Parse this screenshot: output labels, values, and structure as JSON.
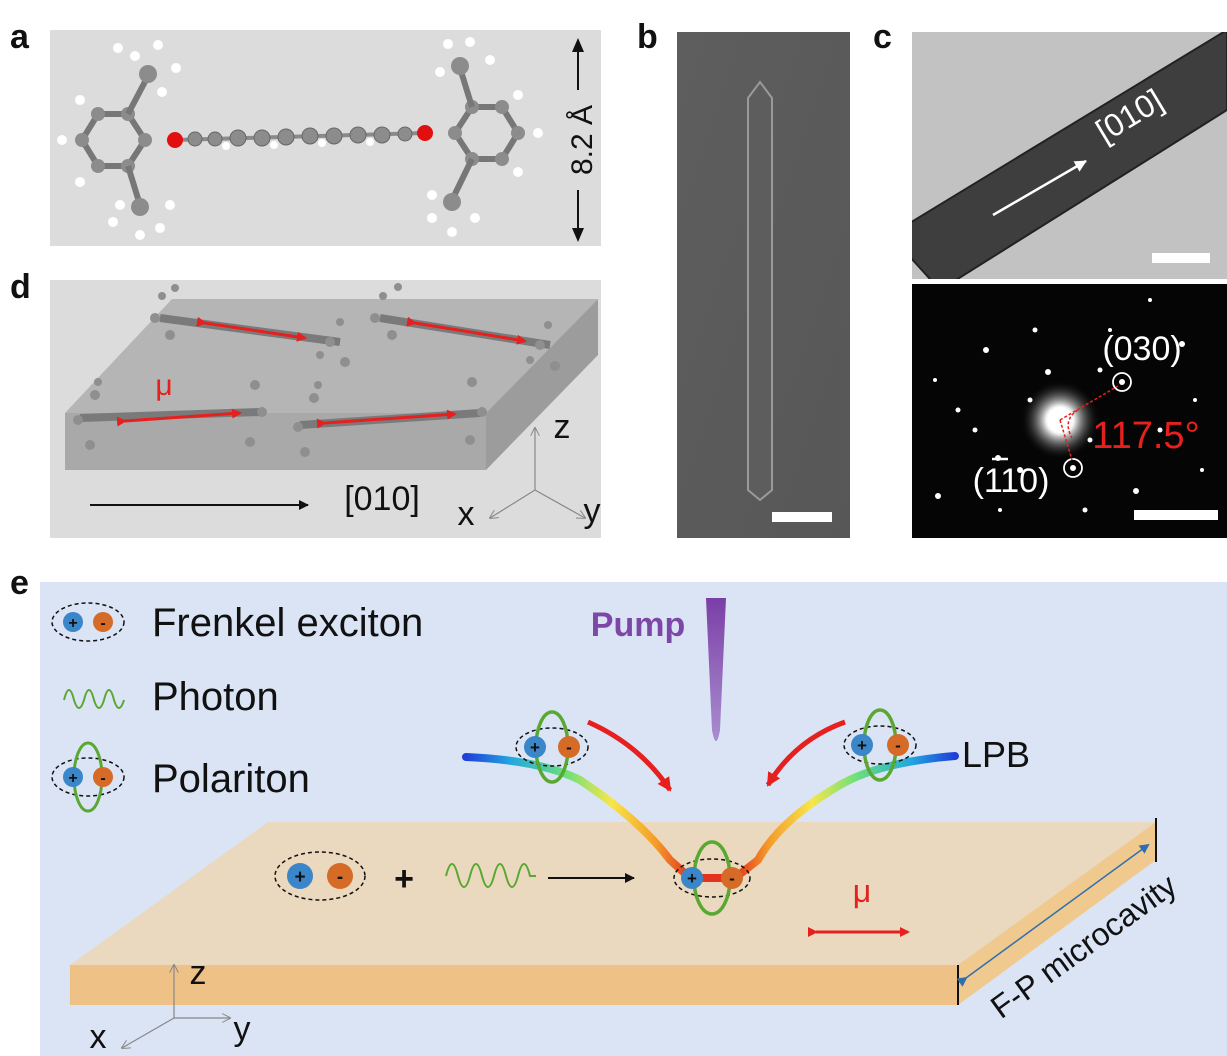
{
  "panels": {
    "a": {
      "label": "a",
      "dimension": "8.2 Å"
    },
    "b": {
      "label": "b"
    },
    "c": {
      "label": "c",
      "direction": "[010]",
      "spot1": "(030)",
      "spot2": "(1̄10)",
      "spot2_base": "(110)",
      "angle": "117.5°"
    },
    "d": {
      "label": "d",
      "dipole": "μ",
      "direction": "[010]",
      "axis_z": "z",
      "axis_x": "x",
      "axis_y": "y"
    },
    "e": {
      "label": "e",
      "legend": {
        "exciton": "Frenkel exciton",
        "photon": "Photon",
        "polariton": "Polariton"
      },
      "pump": "Pump",
      "branch": "LPB",
      "dipole": "μ",
      "cavity": "F-P microcavity",
      "plus_sign": "+",
      "charge_plus": "+",
      "charge_minus": "-",
      "axis_z": "z",
      "axis_x": "x",
      "axis_y": "y"
    }
  },
  "colors": {
    "bg_e": "#dae4f5",
    "slab_top": "#ead9be",
    "slab_side": "#eec186",
    "plus_charge": "#3b86c8",
    "minus_charge": "#d56b27",
    "photon": "#5aa832",
    "pump": "#7d47a8",
    "red_arrow": "#e5201e"
  }
}
